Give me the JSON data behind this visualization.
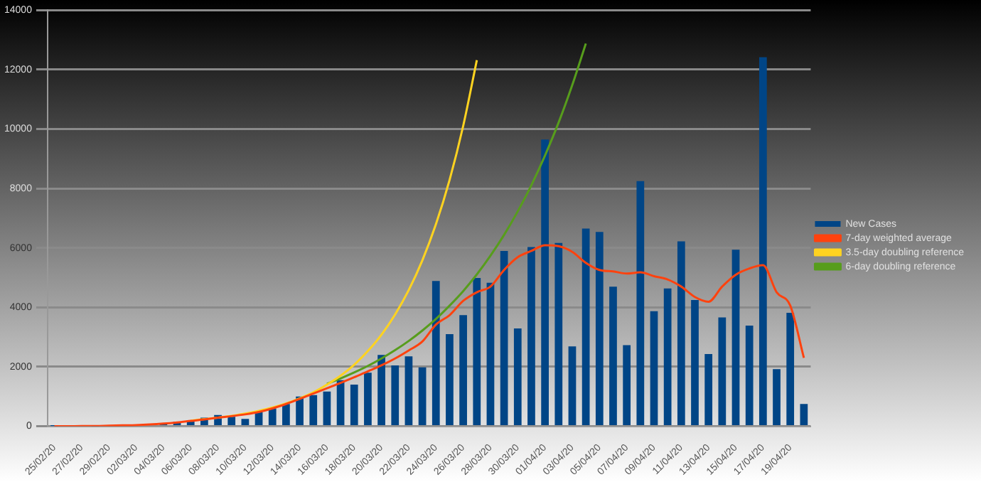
{
  "chart_data": {
    "type": "bar",
    "categories": [
      "25/02/20",
      null,
      "27/02/20",
      null,
      "29/02/20",
      null,
      "02/03/20",
      null,
      "04/03/20",
      null,
      "06/03/20",
      null,
      "08/03/20",
      null,
      "10/03/20",
      null,
      "12/03/20",
      null,
      "14/03/20",
      null,
      "16/03/20",
      null,
      "18/03/20",
      null,
      "20/03/20",
      null,
      "22/03/20",
      null,
      "24/03/20",
      null,
      "26/03/20",
      null,
      "28/03/20",
      null,
      "30/03/20",
      null,
      "01/04/20",
      null,
      "03/04/20",
      null,
      "05/04/20",
      null,
      "07/04/20",
      null,
      "09/04/20",
      null,
      "11/04/20",
      null,
      "13/04/20",
      null,
      "15/04/20",
      null,
      "17/04/20",
      null,
      "19/04/20",
      null
    ],
    "series": [
      {
        "name": "New Cases",
        "color": "#004586",
        "values": [
          10,
          0,
          0,
          10,
          40,
          40,
          50,
          60,
          80,
          150,
          200,
          290,
          380,
          320,
          250,
          480,
          600,
          750,
          1000,
          1050,
          1170,
          1550,
          1400,
          1800,
          2400,
          2050,
          2350,
          1980,
          4890,
          3100,
          3740,
          4990,
          4830,
          5900,
          3290,
          6030,
          9650,
          6170,
          2690,
          6650,
          6540,
          4700,
          2730,
          8250,
          3870,
          4640,
          6220,
          4250,
          2430,
          3660,
          5940,
          3390,
          12420,
          1920,
          3820,
          750
        ]
      },
      {
        "name": "7-day weighted average",
        "type": "line",
        "color": "#ff420e",
        "values": [
          0,
          0,
          10,
          10,
          20,
          30,
          40,
          60,
          90,
          130,
          180,
          230,
          290,
          340,
          400,
          480,
          600,
          750,
          920,
          1100,
          1280,
          1460,
          1650,
          1850,
          2050,
          2280,
          2550,
          2850,
          3420,
          3740,
          4220,
          4510,
          4700,
          5260,
          5690,
          5900,
          6090,
          6060,
          5870,
          5500,
          5260,
          5210,
          5140,
          5180,
          5050,
          4940,
          4700,
          4350,
          4190,
          4700,
          5100,
          5310,
          5420,
          4510,
          4060,
          2300
        ]
      },
      {
        "name": "3.5-day doubling reference",
        "type": "line",
        "color": "#ffd320",
        "values": [
          null,
          null,
          null,
          null,
          null,
          null,
          null,
          null,
          null,
          null,
          190,
          240,
          290,
          350,
          430,
          520,
          630,
          770,
          940,
          1140,
          1400,
          1700,
          2070,
          2530,
          3080,
          3760,
          4580,
          5580,
          6800,
          8290,
          10110,
          12320,
          null,
          null,
          null,
          null,
          null,
          null,
          null,
          null,
          null,
          null,
          null,
          null,
          null,
          null,
          null,
          null,
          null,
          null,
          null,
          null,
          null,
          null,
          null,
          null
        ]
      },
      {
        "name": "6-day doubling reference",
        "type": "line",
        "color": "#579d1c",
        "values": [
          null,
          null,
          null,
          null,
          null,
          null,
          null,
          null,
          null,
          null,
          null,
          null,
          null,
          null,
          null,
          null,
          null,
          null,
          null,
          null,
          1430,
          1610,
          1810,
          2030,
          2280,
          2560,
          2870,
          3220,
          3610,
          4060,
          4550,
          5110,
          5740,
          6440,
          7230,
          8110,
          9110,
          10220,
          11480,
          12880,
          null,
          null,
          null,
          null,
          null,
          null,
          null,
          null,
          null,
          null,
          null,
          null,
          null,
          null,
          null,
          null
        ]
      }
    ],
    "ylim": [
      0,
      14000
    ],
    "yticks": [
      0,
      2000,
      4000,
      6000,
      8000,
      10000,
      12000,
      14000
    ],
    "grid": "y",
    "legend": "right",
    "marker": "none",
    "line_style": "solid"
  }
}
